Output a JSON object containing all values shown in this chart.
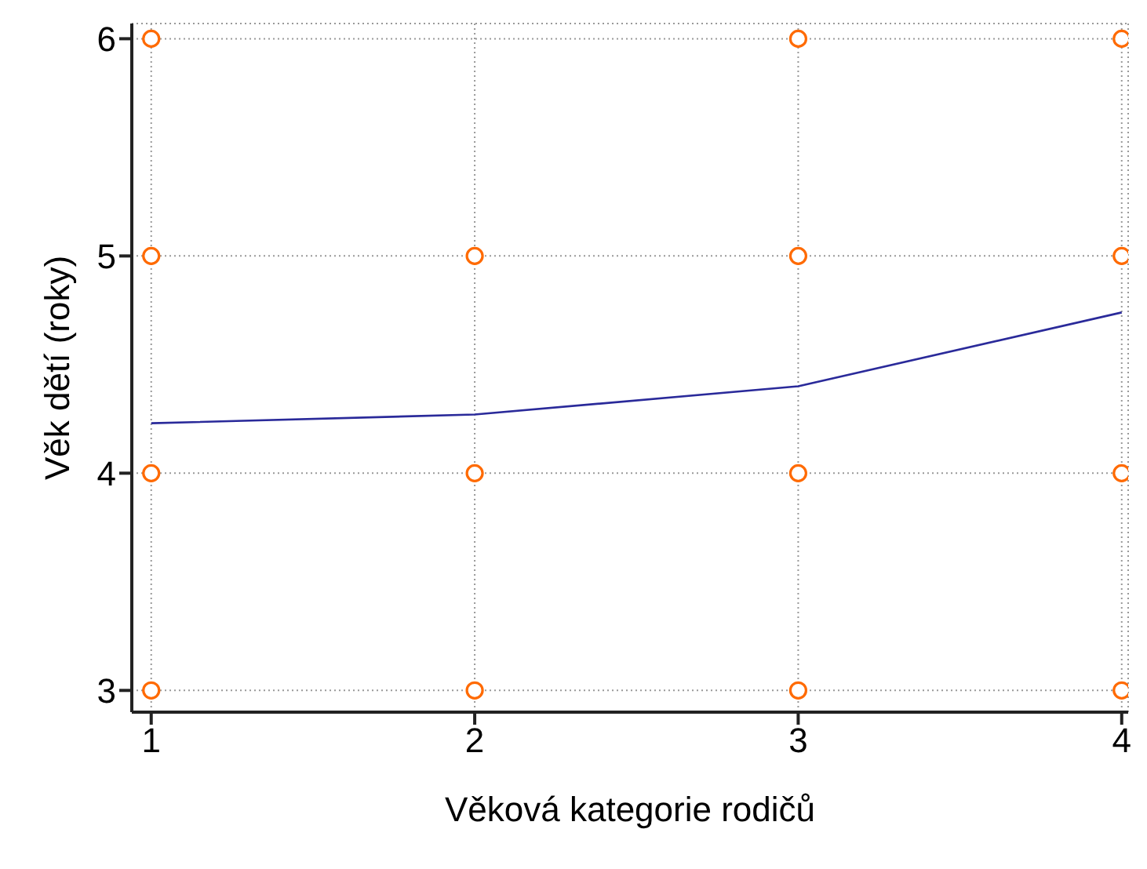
{
  "chart_data": {
    "type": "line",
    "xlabel": "Věková kategorie rodičů",
    "ylabel": "Věk dětí (roky)",
    "series": [
      {
        "color": "#2a2a9a",
        "x": [
          1,
          2,
          3,
          4
        ],
        "values": [
          4.23,
          4.27,
          4.4,
          4.74
        ],
        "marker": "none"
      },
      {
        "type": "scatter",
        "color": "#ff6a00",
        "x": [
          1,
          1,
          1,
          1,
          2,
          2,
          2,
          3,
          3,
          3,
          3,
          4,
          4,
          4,
          4
        ],
        "values": [
          3,
          4,
          5,
          6,
          3,
          4,
          5,
          3,
          4,
          5,
          6,
          3,
          4,
          5,
          6
        ],
        "marker": "circle"
      }
    ],
    "xlim": [
      0.94,
      4.02
    ],
    "ylim": [
      2.9,
      6.07
    ],
    "xticks": [
      1,
      2,
      3,
      4
    ],
    "yticks": [
      3,
      4,
      5,
      6
    ],
    "grid": true
  }
}
